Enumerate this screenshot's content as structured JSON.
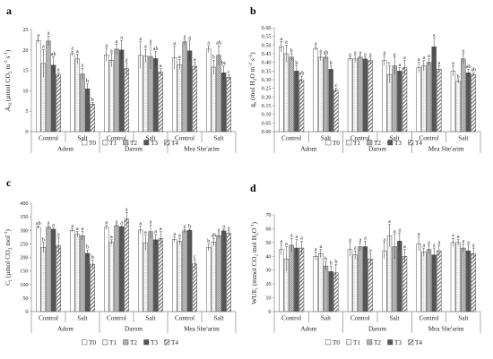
{
  "treatments": [
    "T0",
    "T1",
    "T2",
    "T3",
    "T4"
  ],
  "conditions": [
    "Control",
    "Salt"
  ],
  "cultivars": [
    "Adom",
    "Darom",
    "Mea She'arim"
  ],
  "chart_data": [
    {
      "type": "bar",
      "panel": "a",
      "ylabel": "A_N (μmol CO2 m⁻² s⁻¹)",
      "ylim": [
        0,
        25
      ],
      "yticks": [
        0,
        5,
        10,
        15,
        20,
        25
      ],
      "ytick_labels": [
        "0",
        "5",
        "10",
        "15",
        "20",
        "25"
      ],
      "legend_position": "bottom",
      "groups": [
        {
          "cultivar": "Adom",
          "condition": "Control",
          "values": [
            22.3,
            16.7,
            22.2,
            16.3,
            13.9
          ],
          "errors": [
            0.6,
            3.4,
            1.2,
            2.0,
            0.5
          ],
          "letters": [
            "a",
            "a",
            "a",
            "ab",
            "a"
          ]
        },
        {
          "cultivar": "Adom",
          "condition": "Salt",
          "values": [
            19.1,
            17.8,
            14.1,
            10.5,
            6.7
          ],
          "errors": [
            0.6,
            1.2,
            1.4,
            1.2,
            0.4
          ],
          "letters": [
            "a",
            "a",
            "a",
            "b",
            "b"
          ]
        },
        {
          "cultivar": "Darom",
          "condition": "Control",
          "values": [
            18.8,
            17.5,
            20.2,
            20.0,
            15.4
          ],
          "errors": [
            1.6,
            1.6,
            1.2,
            2.3,
            1.5
          ],
          "letters": [
            "a",
            "a",
            "a",
            "a",
            "a"
          ]
        },
        {
          "cultivar": "Darom",
          "condition": "Salt",
          "values": [
            18.7,
            18.5,
            18.4,
            17.9,
            14.6
          ],
          "errors": [
            3.3,
            1.6,
            3.1,
            1.7,
            0.8
          ],
          "letters": [
            "a",
            "a",
            "a",
            "ab",
            "a"
          ]
        },
        {
          "cultivar": "Mea She'arim",
          "condition": "Control",
          "values": [
            18.1,
            16.4,
            22.0,
            19.8,
            16.0
          ],
          "errors": [
            2.8,
            1.2,
            0.6,
            2.6,
            1.0
          ],
          "letters": [
            "a",
            "a",
            "a",
            "a",
            "a"
          ]
        },
        {
          "cultivar": "Mea She'arim",
          "condition": "Salt",
          "values": [
            20.2,
            15.8,
            18.7,
            14.4,
            13.3
          ],
          "errors": [
            0.8,
            1.7,
            2.3,
            1.7,
            0.6
          ],
          "letters": [
            "a",
            "b",
            "ab",
            "bc",
            "c"
          ]
        }
      ]
    },
    {
      "type": "bar",
      "panel": "b",
      "ylabel": "g_s (mol H2O m⁻² s⁻¹)",
      "ylim": [
        0,
        0.6
      ],
      "yticks": [
        0,
        0.05,
        0.1,
        0.15,
        0.2,
        0.25,
        0.3,
        0.35,
        0.4,
        0.45,
        0.5,
        0.55,
        0.6
      ],
      "ytick_labels": [
        "0.00",
        "0.05",
        "0.10",
        "0.15",
        "0.20",
        "0.25",
        "0.30",
        "0.35",
        "0.40",
        "0.45",
        "0.50",
        "0.55",
        "0.60"
      ],
      "legend_position": "bottom",
      "groups": [
        {
          "cultivar": "Adom",
          "condition": "Control",
          "values": [
            0.49,
            0.45,
            0.43,
            0.35,
            0.3
          ],
          "errors": [
            0.03,
            0.05,
            0.02,
            0.03,
            0.02
          ],
          "letters": [
            "a",
            "a",
            "b",
            "b",
            "ab"
          ]
        },
        {
          "cultivar": "Adom",
          "condition": "Salt",
          "values": [
            0.48,
            0.43,
            0.43,
            0.36,
            0.24
          ],
          "errors": [
            0.01,
            0.02,
            0.01,
            0.02,
            0.01
          ],
          "letters": [
            "a",
            "a",
            "ab",
            "b",
            "c"
          ]
        },
        {
          "cultivar": "Darom",
          "condition": "Control",
          "values": [
            0.42,
            0.42,
            0.43,
            0.42,
            0.41
          ],
          "errors": [
            0.01,
            0.02,
            0.01,
            0.01,
            0.02
          ],
          "letters": [
            "a",
            "a",
            "a",
            "a",
            "a"
          ]
        },
        {
          "cultivar": "Darom",
          "condition": "Salt",
          "values": [
            0.41,
            0.33,
            0.38,
            0.35,
            0.37
          ],
          "errors": [
            0.03,
            0.05,
            0.05,
            0.02,
            0.04
          ],
          "letters": [
            "a",
            "c",
            "a",
            "a",
            "a"
          ]
        },
        {
          "cultivar": "Mea She'arim",
          "condition": "Control",
          "values": [
            0.37,
            0.38,
            0.4,
            0.49,
            0.36
          ],
          "errors": [
            0.03,
            0.03,
            0.02,
            0.05,
            0.02
          ],
          "letters": [
            "a",
            "a",
            "a",
            "a",
            "a"
          ]
        },
        {
          "cultivar": "Mea She'arim",
          "condition": "Salt",
          "values": [
            0.35,
            0.29,
            0.42,
            0.34,
            0.33
          ],
          "errors": [
            0.03,
            0.01,
            0.03,
            0.02,
            0.01
          ],
          "letters": [
            "a",
            "b",
            "a",
            "ab",
            "ab"
          ]
        }
      ]
    },
    {
      "type": "bar",
      "panel": "c",
      "ylabel": "C_i (μmol CO2 mol⁻¹)",
      "ylim": [
        0,
        400
      ],
      "yticks": [
        0,
        50,
        100,
        150,
        200,
        250,
        300,
        350,
        400
      ],
      "ytick_labels": [
        "0",
        "50",
        "100",
        "150",
        "200",
        "250",
        "300",
        "350",
        "400"
      ],
      "legend_position": "bottom",
      "groups": [
        {
          "cultivar": "Adom",
          "condition": "Control",
          "values": [
            311,
            237,
            311,
            304,
            244
          ],
          "errors": [
            5,
            18,
            6,
            4,
            30
          ],
          "letters": [
            "ab",
            "b",
            "a",
            "a",
            "a"
          ]
        },
        {
          "cultivar": "Adom",
          "condition": "Salt",
          "values": [
            300,
            285,
            280,
            215,
            175
          ],
          "errors": [
            6,
            10,
            16,
            12,
            14
          ],
          "letters": [
            "a",
            "a",
            "a",
            "b",
            "b"
          ]
        },
        {
          "cultivar": "Darom",
          "condition": "Control",
          "values": [
            311,
            256,
            317,
            313,
            342
          ],
          "errors": [
            8,
            9,
            4,
            4,
            24
          ],
          "letters": [
            "a",
            "a",
            "a",
            "a",
            "a"
          ]
        },
        {
          "cultivar": "Darom",
          "condition": "Salt",
          "values": [
            301,
            254,
            295,
            265,
            270
          ],
          "errors": [
            15,
            28,
            25,
            20,
            25
          ],
          "letters": [
            "a",
            "a",
            "a",
            "a",
            "a"
          ]
        },
        {
          "cultivar": "Mea She'arim",
          "condition": "Control",
          "values": [
            266,
            259,
            298,
            300,
            176
          ],
          "errors": [
            10,
            12,
            6,
            4,
            16
          ],
          "letters": [
            "a",
            "a",
            "a",
            "b",
            "c"
          ]
        },
        {
          "cultivar": "Mea She'arim",
          "condition": "Salt",
          "values": [
            237,
            257,
            281,
            298,
            289
          ],
          "errors": [
            12,
            14,
            10,
            6,
            9
          ],
          "letters": [
            "b",
            "ab",
            "a",
            "a",
            "a"
          ]
        }
      ]
    },
    {
      "type": "bar",
      "panel": "d",
      "ylabel": "WUE_i (mmol CO2 mol H2O⁻¹)",
      "ylim": [
        0,
        70
      ],
      "yticks": [
        0,
        10,
        20,
        30,
        40,
        50,
        60,
        70
      ],
      "ytick_labels": [
        "0",
        "10",
        "20",
        "30",
        "40",
        "50",
        "60",
        "70"
      ],
      "legend_position": "bottom",
      "groups": [
        {
          "cultivar": "Adom",
          "condition": "Control",
          "values": [
            45,
            38,
            48,
            46,
            46
          ],
          "errors": [
            4,
            9,
            5,
            6,
            5
          ],
          "letters": [
            "a",
            "a",
            "a",
            "a",
            "a"
          ]
        },
        {
          "cultivar": "Adom",
          "condition": "Salt",
          "values": [
            40,
            42,
            33,
            29,
            28
          ],
          "errors": [
            3,
            3,
            3,
            4,
            6
          ],
          "letters": [
            "a",
            "a",
            "b",
            "b",
            "b"
          ]
        },
        {
          "cultivar": "Darom",
          "condition": "Control",
          "values": [
            45,
            41,
            47,
            47,
            38
          ],
          "errors": [
            5,
            3,
            3,
            4,
            4
          ],
          "letters": [
            "a",
            "a",
            "a",
            "a",
            "a"
          ]
        },
        {
          "cultivar": "Darom",
          "condition": "Salt",
          "values": [
            44,
            55,
            47,
            51,
            40
          ],
          "errors": [
            6,
            8,
            9,
            6,
            5
          ],
          "letters": [
            "a",
            "a",
            "a",
            "a",
            "a"
          ]
        },
        {
          "cultivar": "Mea She'arim",
          "condition": "Control",
          "values": [
            49,
            43,
            45,
            41,
            44
          ],
          "errors": [
            5,
            3,
            3,
            5,
            4
          ],
          "letters": [
            "a",
            "a",
            "a",
            "a",
            "a"
          ]
        },
        {
          "cultivar": "Mea She'arim",
          "condition": "Salt",
          "values": [
            50,
            50,
            46,
            44,
            42
          ],
          "errors": [
            3,
            2,
            3,
            4,
            4
          ],
          "letters": [
            "a",
            "a",
            "a",
            "a",
            "a"
          ]
        }
      ]
    }
  ]
}
